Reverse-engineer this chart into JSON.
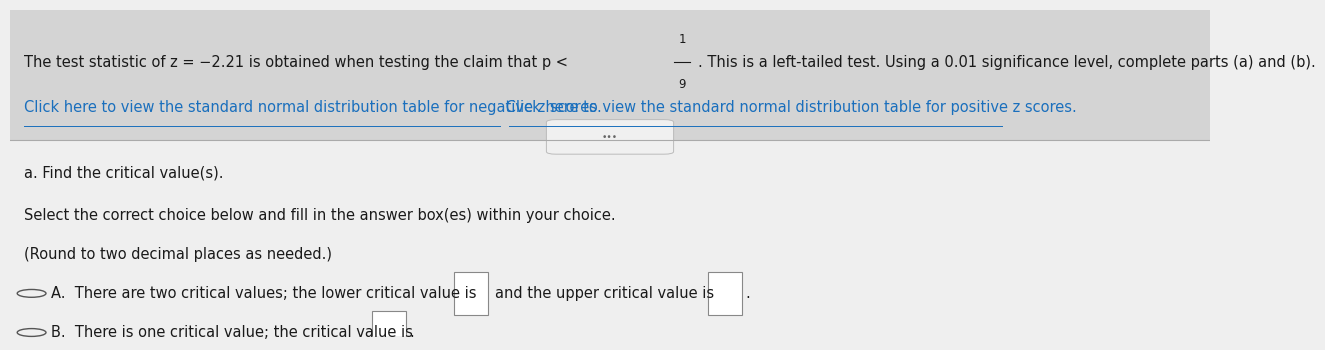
{
  "upper_bg_color": "#d4d4d4",
  "lower_bg_color": "#efefef",
  "line1_part1": "The test statistic of z = −2.21 is obtained when testing the claim that p < ",
  "line1_frac_num": "1",
  "line1_frac_den": "9",
  "line1_part2": ". This is a left-tailed test. Using a 0.01 significance level, complete parts (a) and (b).",
  "line2a": "Click here to view the standard normal distribution table for negative z scores.",
  "line2b": " Click here to view the standard normal distribution table for positive z scores.",
  "divider_button_text": "•••",
  "section_a_label": "a. Find the critical value(s).",
  "section_a_sub1": "Select the correct choice below and fill in the answer box(es) within your choice.",
  "section_a_sub2": "(Round to two decimal places as needed.)",
  "option_A_pre": "A.  There are two critical values; the lower critical value is",
  "option_A_mid": "and the upper critical value is",
  "option_A_end": ".",
  "option_B_pre": "B.  There is one critical value; the critical value is",
  "option_B_end": ".",
  "font_size_main": 10.5,
  "text_color": "#1a1a1a",
  "link_color": "#1a6fbd",
  "radio_color": "#555555",
  "separator_color": "#aaaaaa",
  "box_edge_color": "#888888"
}
